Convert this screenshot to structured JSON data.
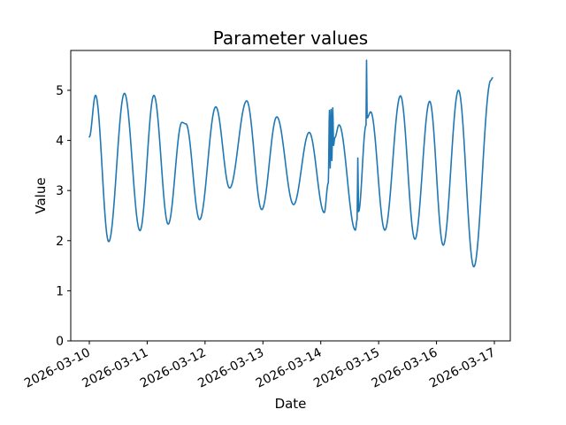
{
  "chart_data": {
    "type": "line",
    "title": "Parameter values",
    "xlabel": "Date",
    "ylabel": "Value",
    "line_color": "#1f77b4",
    "line_width": 1.6,
    "axis_color": "#000000",
    "background": "#ffffff",
    "grid": false,
    "legend": null,
    "interpolation": "cosine",
    "x_unit": "days since 2026-03-10 00:00",
    "xlim_days": [
      -0.321,
      7.275
    ],
    "ylim": [
      0,
      5.795
    ],
    "x_tick_days": [
      0,
      1,
      2,
      3,
      4,
      5,
      6,
      7
    ],
    "x_tick_labels": [
      "2026-03-10",
      "2026-03-11",
      "2026-03-12",
      "2026-03-13",
      "2026-03-14",
      "2026-03-15",
      "2026-03-16",
      "2026-03-17"
    ],
    "x_tick_rotation_deg": -27,
    "y_ticks": [
      0,
      1,
      2,
      3,
      4,
      5
    ],
    "y_tick_labels": [
      "0",
      "1",
      "2",
      "3",
      "4",
      "5"
    ],
    "points": [
      [
        0.0,
        4.07
      ],
      [
        0.107,
        4.9
      ],
      [
        0.335,
        1.98
      ],
      [
        0.607,
        4.94
      ],
      [
        0.875,
        2.2
      ],
      [
        1.116,
        4.9
      ],
      [
        1.363,
        2.33
      ],
      [
        1.6,
        4.36
      ],
      [
        1.67,
        4.33
      ],
      [
        1.906,
        2.42
      ],
      [
        2.186,
        4.67
      ],
      [
        2.425,
        3.05
      ],
      [
        2.72,
        4.79
      ],
      [
        2.98,
        2.62
      ],
      [
        3.24,
        4.47
      ],
      [
        3.53,
        2.72
      ],
      [
        3.8,
        4.16
      ],
      [
        4.06,
        2.56
      ],
      [
        4.13,
        3.15
      ],
      [
        4.15,
        4.6
      ],
      [
        4.163,
        3.45
      ],
      [
        4.178,
        4.62
      ],
      [
        4.192,
        3.6
      ],
      [
        4.207,
        4.65
      ],
      [
        4.222,
        3.9
      ],
      [
        4.24,
        4.05
      ],
      [
        4.316,
        4.31
      ],
      [
        4.598,
        2.21
      ],
      [
        4.628,
        2.42
      ],
      [
        4.64,
        3.65
      ],
      [
        4.653,
        2.58
      ],
      [
        4.782,
        4.3
      ],
      [
        4.791,
        5.6
      ],
      [
        4.801,
        4.45
      ],
      [
        4.862,
        4.57
      ],
      [
        5.107,
        2.21
      ],
      [
        5.377,
        4.89
      ],
      [
        5.627,
        2.03
      ],
      [
        5.882,
        4.78
      ],
      [
        6.116,
        1.91
      ],
      [
        6.38,
        5.0
      ],
      [
        6.645,
        1.48
      ],
      [
        6.94,
        5.2
      ],
      [
        6.968,
        5.25
      ]
    ]
  }
}
